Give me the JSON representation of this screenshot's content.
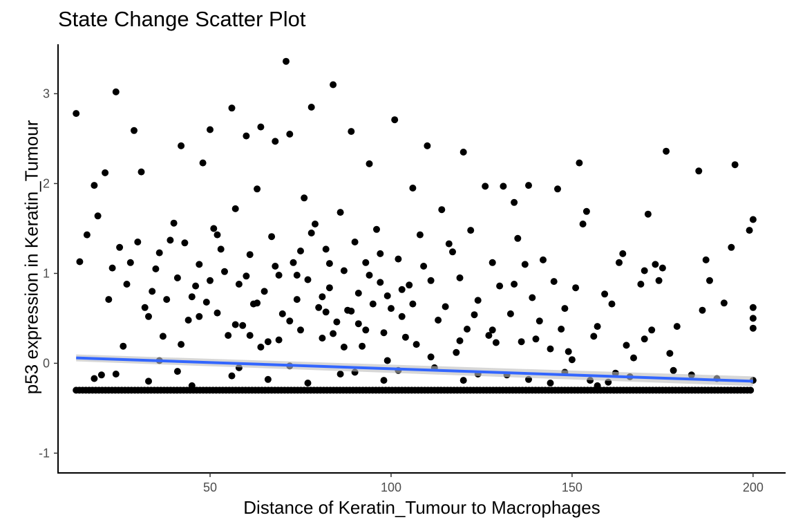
{
  "chart_data": {
    "type": "scatter",
    "title": "State Change Scatter Plot",
    "xlabel": "Distance of Keratin_Tumour to Macrophages",
    "ylabel": "p53 expression in Keratin_Tumour",
    "xlim": [
      8,
      209
    ],
    "ylim": [
      -1.22,
      3.55
    ],
    "x_ticks": [
      50,
      100,
      150,
      200
    ],
    "x_tick_labels": [
      "50",
      "100",
      "150",
      "200"
    ],
    "y_ticks": [
      -1,
      0,
      1,
      2,
      3
    ],
    "y_tick_labels": [
      "-1",
      "0",
      "1",
      "2",
      "3"
    ],
    "grid": false,
    "point_color": "#000000",
    "trend_color": "#3366FF",
    "trend_band_color": "#BDBDBD",
    "baseline_y": -0.3,
    "trend_line": {
      "x": [
        13,
        200
      ],
      "y": [
        0.06,
        -0.2
      ]
    },
    "points": [
      [
        13,
        2.78
      ],
      [
        24,
        3.02
      ],
      [
        29,
        2.59
      ],
      [
        31,
        2.13
      ],
      [
        42,
        2.42
      ],
      [
        48,
        2.23
      ],
      [
        50,
        2.6
      ],
      [
        56,
        2.84
      ],
      [
        60,
        2.53
      ],
      [
        64,
        2.63
      ],
      [
        68,
        2.47
      ],
      [
        71,
        3.36
      ],
      [
        72,
        2.55
      ],
      [
        78,
        2.85
      ],
      [
        84,
        3.1
      ],
      [
        89,
        2.58
      ],
      [
        94,
        2.22
      ],
      [
        101,
        2.71
      ],
      [
        110,
        2.42
      ],
      [
        120,
        2.35
      ],
      [
        152,
        2.23
      ],
      [
        176,
        2.36
      ],
      [
        185,
        2.14
      ],
      [
        195,
        2.21
      ],
      [
        200,
        1.6
      ],
      [
        199,
        1.48
      ],
      [
        194,
        1.29
      ],
      [
        187,
        1.15
      ],
      [
        171,
        1.66
      ],
      [
        173,
        1.1
      ],
      [
        16,
        1.43
      ],
      [
        18,
        1.98
      ],
      [
        19,
        1.64
      ],
      [
        21,
        2.12
      ],
      [
        23,
        1.06
      ],
      [
        25,
        1.29
      ],
      [
        27,
        0.88
      ],
      [
        28,
        1.12
      ],
      [
        30,
        1.35
      ],
      [
        32,
        0.62
      ],
      [
        34,
        0.8
      ],
      [
        36,
        1.23
      ],
      [
        38,
        0.71
      ],
      [
        40,
        1.56
      ],
      [
        41,
        0.95
      ],
      [
        43,
        1.34
      ],
      [
        44,
        0.48
      ],
      [
        46,
        0.86
      ],
      [
        47,
        1.1
      ],
      [
        49,
        0.68
      ],
      [
        51,
        1.5
      ],
      [
        52,
        0.56
      ],
      [
        54,
        1.02
      ],
      [
        55,
        0.31
      ],
      [
        57,
        1.72
      ],
      [
        58,
        0.88
      ],
      [
        59,
        0.42
      ],
      [
        61,
        1.21
      ],
      [
        62,
        0.66
      ],
      [
        63,
        1.94
      ],
      [
        65,
        0.8
      ],
      [
        66,
        0.24
      ],
      [
        67,
        1.41
      ],
      [
        69,
        0.98
      ],
      [
        70,
        0.55
      ],
      [
        73,
        1.12
      ],
      [
        74,
        0.71
      ],
      [
        75,
        0.37
      ],
      [
        76,
        1.84
      ],
      [
        77,
        0.93
      ],
      [
        79,
        1.55
      ],
      [
        80,
        0.62
      ],
      [
        81,
        0.28
      ],
      [
        82,
        1.27
      ],
      [
        83,
        0.84
      ],
      [
        85,
        0.46
      ],
      [
        86,
        1.68
      ],
      [
        87,
        1.03
      ],
      [
        88,
        0.59
      ],
      [
        90,
        1.35
      ],
      [
        91,
        0.78
      ],
      [
        92,
        0.19
      ],
      [
        93,
        1.12
      ],
      [
        95,
        0.66
      ],
      [
        96,
        1.49
      ],
      [
        97,
        0.9
      ],
      [
        98,
        0.34
      ],
      [
        99,
        0.75
      ],
      [
        102,
        1.16
      ],
      [
        103,
        0.52
      ],
      [
        105,
        0.87
      ],
      [
        106,
        1.95
      ],
      [
        107,
        0.21
      ],
      [
        108,
        1.43
      ],
      [
        111,
        0.92
      ],
      [
        113,
        0.48
      ],
      [
        114,
        1.71
      ],
      [
        115,
        0.63
      ],
      [
        117,
        1.24
      ],
      [
        118,
        0.12
      ],
      [
        119,
        0.95
      ],
      [
        121,
        0.38
      ],
      [
        122,
        1.48
      ],
      [
        124,
        0.7
      ],
      [
        126,
        1.97
      ],
      [
        127,
        0.31
      ],
      [
        128,
        1.12
      ],
      [
        130,
        0.86
      ],
      [
        131,
        1.97
      ],
      [
        133,
        0.55
      ],
      [
        134,
        1.79
      ],
      [
        136,
        0.24
      ],
      [
        137,
        1.1
      ],
      [
        138,
        1.98
      ],
      [
        139,
        0.73
      ],
      [
        141,
        0.47
      ],
      [
        142,
        1.15
      ],
      [
        145,
        0.91
      ],
      [
        146,
        1.94
      ],
      [
        148,
        0.61
      ],
      [
        149,
        0.13
      ],
      [
        151,
        0.84
      ],
      [
        153,
        1.55
      ],
      [
        154,
        1.69
      ],
      [
        157,
        0.41
      ],
      [
        159,
        0.77
      ],
      [
        161,
        0.66
      ],
      [
        163,
        1.12
      ],
      [
        164,
        1.22
      ],
      [
        165,
        0.2
      ],
      [
        167,
        0.06
      ],
      [
        169,
        0.88
      ],
      [
        170,
        1.03
      ],
      [
        172,
        0.37
      ],
      [
        174,
        0.92
      ],
      [
        175,
        1.06
      ],
      [
        177,
        0.11
      ],
      [
        179,
        0.41
      ],
      [
        186,
        0.59
      ],
      [
        188,
        0.92
      ],
      [
        192,
        0.67
      ],
      [
        200,
        0.62
      ],
      [
        200,
        0.5
      ],
      [
        200,
        0.39
      ],
      [
        200,
        -0.19
      ],
      [
        14,
        1.13
      ],
      [
        22,
        0.71
      ],
      [
        26,
        0.19
      ],
      [
        33,
        0.52
      ],
      [
        35,
        1.05
      ],
      [
        37,
        0.3
      ],
      [
        39,
        1.37
      ],
      [
        45,
        0.74
      ],
      [
        53,
        1.27
      ],
      [
        60,
        0.97
      ],
      [
        64,
        0.18
      ],
      [
        68,
        1.08
      ],
      [
        72,
        0.47
      ],
      [
        78,
        1.45
      ],
      [
        81,
        0.74
      ],
      [
        84,
        0.33
      ],
      [
        89,
        0.58
      ],
      [
        94,
        0.98
      ],
      [
        100,
        0.61
      ],
      [
        104,
        0.29
      ],
      [
        109,
        1.08
      ],
      [
        116,
        1.33
      ],
      [
        123,
        0.54
      ],
      [
        129,
        0.23
      ],
      [
        135,
        1.39
      ],
      [
        140,
        0.27
      ],
      [
        147,
        0.38
      ],
      [
        150,
        0.04
      ],
      [
        156,
        0.3
      ],
      [
        160,
        -0.21
      ],
      [
        166,
        -0.15
      ],
      [
        170,
        0.27
      ],
      [
        178,
        -0.08
      ],
      [
        183,
        -0.13
      ],
      [
        190,
        -0.17
      ],
      [
        20,
        -0.13
      ],
      [
        24,
        -0.12
      ],
      [
        33,
        -0.2
      ],
      [
        45,
        -0.25
      ],
      [
        56,
        -0.14
      ],
      [
        66,
        -0.18
      ],
      [
        77,
        -0.22
      ],
      [
        90,
        -0.1
      ],
      [
        98,
        -0.19
      ],
      [
        112,
        -0.05
      ],
      [
        124,
        -0.12
      ],
      [
        138,
        -0.18
      ],
      [
        144,
        -0.22
      ],
      [
        155,
        -0.19
      ],
      [
        162,
        -0.11
      ],
      [
        18,
        -0.17
      ],
      [
        41,
        -0.09
      ],
      [
        58,
        -0.05
      ],
      [
        72,
        -0.03
      ],
      [
        86,
        -0.12
      ],
      [
        102,
        -0.08
      ],
      [
        120,
        -0.19
      ],
      [
        132,
        -0.13
      ],
      [
        148,
        -0.1
      ],
      [
        157,
        -0.25
      ],
      [
        63,
        0.67
      ],
      [
        47,
        0.52
      ],
      [
        52,
        1.43
      ],
      [
        57,
        0.43
      ],
      [
        74,
        0.98
      ],
      [
        82,
        0.57
      ],
      [
        87,
        0.18
      ],
      [
        93,
        0.37
      ],
      [
        97,
        1.22
      ],
      [
        103,
        0.82
      ],
      [
        111,
        0.07
      ],
      [
        119,
        0.25
      ],
      [
        128,
        0.37
      ],
      [
        134,
        0.88
      ],
      [
        144,
        0.16
      ],
      [
        36,
        0.03
      ],
      [
        42,
        0.21
      ],
      [
        50,
        0.92
      ],
      [
        61,
        0.31
      ],
      [
        69,
        0.26
      ],
      [
        75,
        1.25
      ],
      [
        83,
        1.11
      ],
      [
        91,
        0.44
      ],
      [
        99,
        0.03
      ],
      [
        106,
        0.66
      ]
    ]
  }
}
